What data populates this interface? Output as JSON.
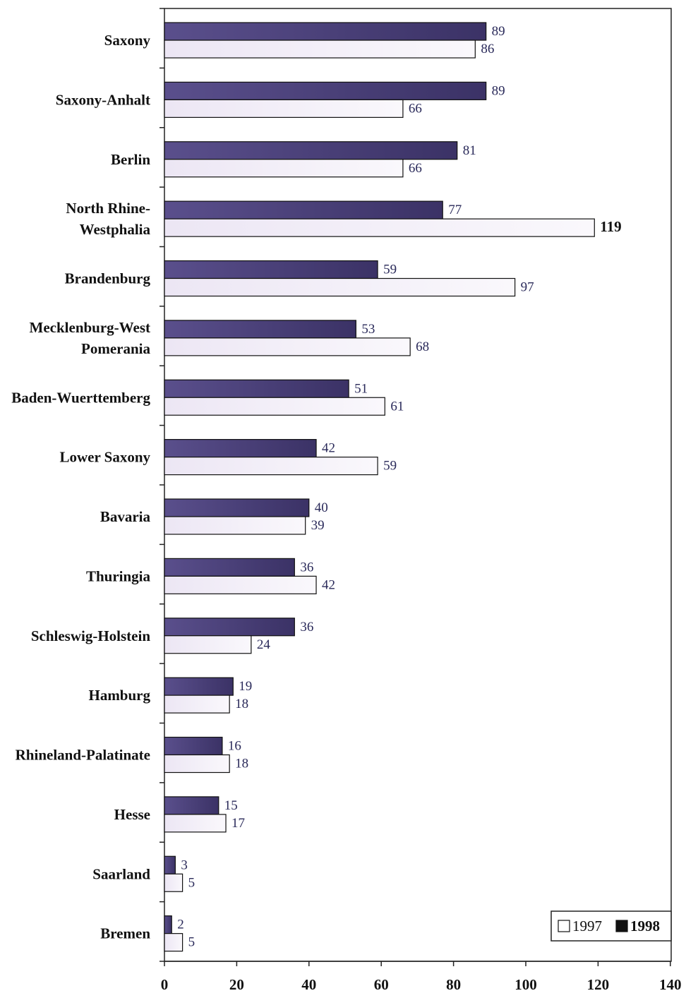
{
  "chart_data": {
    "type": "bar",
    "orientation": "horizontal",
    "categories": [
      [
        "Saxony"
      ],
      [
        "Saxony-Anhalt"
      ],
      [
        "Berlin"
      ],
      [
        "North Rhine-",
        "Westphalia"
      ],
      [
        "Brandenburg"
      ],
      [
        "Mecklenburg-West",
        "Pomerania"
      ],
      [
        "Baden-Wuerttemberg"
      ],
      [
        "Lower Saxony"
      ],
      [
        "Bavaria"
      ],
      [
        "Thuringia"
      ],
      [
        "Schleswig-Holstein"
      ],
      [
        "Hamburg"
      ],
      [
        "Rhineland-Palatinate"
      ],
      [
        "Hesse"
      ],
      [
        "Saarland"
      ],
      [
        "Bremen"
      ]
    ],
    "series": [
      {
        "name": "1998",
        "color": "#4a3f7a",
        "values": [
          89,
          89,
          81,
          77,
          59,
          53,
          51,
          42,
          40,
          36,
          36,
          19,
          16,
          15,
          3,
          2
        ]
      },
      {
        "name": "1997",
        "color": "#f6f2fa",
        "values": [
          86,
          66,
          66,
          119,
          97,
          68,
          61,
          59,
          39,
          42,
          24,
          18,
          18,
          17,
          5,
          5
        ]
      }
    ],
    "xlim": [
      0,
      140
    ],
    "xticks": [
      "0",
      "20",
      "40",
      "60",
      "80",
      "100",
      "120",
      "140"
    ],
    "legend": {
      "position": "bottom-right",
      "entries": [
        {
          "label": "1997",
          "color": "#ffffff"
        },
        {
          "label": "1998",
          "color": "#111111"
        }
      ]
    },
    "title": "",
    "xlabel": "",
    "ylabel": "",
    "grid": false,
    "bold_value_labels": [
      "119"
    ]
  }
}
